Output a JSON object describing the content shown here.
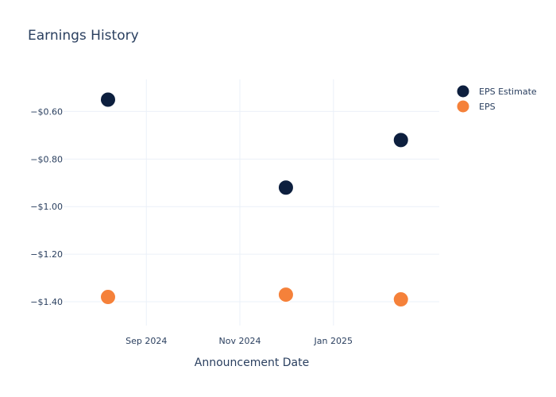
{
  "chart_data": {
    "type": "scatter",
    "title": "Earnings History",
    "xlabel": "Announcement Date",
    "ylabel": "",
    "x_ticks": [
      {
        "date": "2024-09-01",
        "label": "Sep 2024"
      },
      {
        "date": "2024-11-01",
        "label": "Nov 2024"
      },
      {
        "date": "2025-01-01",
        "label": "Jan 2025"
      }
    ],
    "y_ticks": [
      {
        "value": -0.6,
        "label": "−$0.60"
      },
      {
        "value": -0.8,
        "label": "−$0.80"
      },
      {
        "value": -1.0,
        "label": "−$1.00"
      },
      {
        "value": -1.2,
        "label": "−$1.20"
      },
      {
        "value": -1.4,
        "label": "−$1.40"
      }
    ],
    "xlim": [
      "2024-07-09",
      "2025-03-11"
    ],
    "ylim": [
      -1.5,
      -0.465
    ],
    "grid": true,
    "legend_position": "top-right",
    "series": [
      {
        "name": "EPS Estimate",
        "color": "#0d1f3e",
        "points": [
          {
            "x": "2024-08-07",
            "y": -0.55
          },
          {
            "x": "2024-12-01",
            "y": -0.92
          },
          {
            "x": "2025-02-14",
            "y": -0.72
          }
        ]
      },
      {
        "name": "EPS",
        "color": "#f5813a",
        "points": [
          {
            "x": "2024-08-07",
            "y": -1.38
          },
          {
            "x": "2024-12-01",
            "y": -1.37
          },
          {
            "x": "2025-02-14",
            "y": -1.39
          }
        ]
      }
    ]
  }
}
